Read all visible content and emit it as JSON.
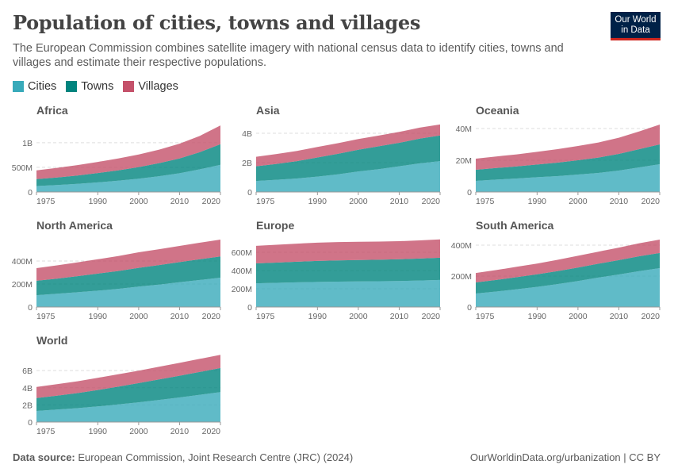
{
  "header": {
    "title": "Population of cities, towns and villages",
    "subtitle": "The European Commission combines satellite imagery with national census data to identify cities, towns and villages and estimate their respective populations.",
    "logo": "Our World in Data"
  },
  "colors": {
    "Cities": "#38aaba",
    "Towns": "#00847e",
    "Villages": "#c4516a"
  },
  "legend": [
    "Cities",
    "Towns",
    "Villages"
  ],
  "footer": {
    "source_label": "Data source:",
    "source": "European Commission, Joint Research Centre (JRC) (2024)",
    "credit": "OurWorldinData.org/urbanization | CC BY"
  },
  "chart_data": [
    {
      "type": "area",
      "stacked": true,
      "title": "Africa",
      "x": [
        1975,
        1980,
        1985,
        1990,
        1995,
        2000,
        2005,
        2010,
        2015,
        2020
      ],
      "xticks": [
        "1975",
        "1990",
        "2000",
        "2010",
        "2020"
      ],
      "ylim": [
        0,
        1400000000
      ],
      "yticks": [
        {
          "v": 0,
          "l": "0"
        },
        {
          "v": 500000000,
          "l": "500M"
        },
        {
          "v": 1000000000,
          "l": "1B"
        }
      ],
      "series": [
        {
          "name": "Cities",
          "values": [
            120,
            140,
            165,
            195,
            230,
            270,
            320,
            380,
            460,
            550
          ]
        },
        {
          "name": "Towns",
          "values": [
            140,
            155,
            170,
            190,
            210,
            235,
            265,
            300,
            350,
            420
          ]
        },
        {
          "name": "Villages",
          "values": [
            180,
            195,
            210,
            225,
            240,
            255,
            275,
            300,
            330,
            380
          ]
        }
      ],
      "unit": "million"
    },
    {
      "type": "area",
      "stacked": true,
      "title": "Asia",
      "x": [
        1975,
        1980,
        1985,
        1990,
        1995,
        2000,
        2005,
        2010,
        2015,
        2020
      ],
      "xticks": [
        "1975",
        "1990",
        "2000",
        "2010",
        "2020"
      ],
      "ylim": [
        0,
        4700000000
      ],
      "yticks": [
        {
          "v": 0,
          "l": "0"
        },
        {
          "v": 2000000000,
          "l": "2B"
        },
        {
          "v": 4000000000,
          "l": "4B"
        }
      ],
      "series": [
        {
          "name": "Cities",
          "values": [
            750,
            830,
            920,
            1050,
            1200,
            1400,
            1550,
            1750,
            1950,
            2100
          ]
        },
        {
          "name": "Towns",
          "values": [
            1000,
            1080,
            1180,
            1300,
            1400,
            1480,
            1560,
            1600,
            1680,
            1750
          ]
        },
        {
          "name": "Villages",
          "values": [
            650,
            680,
            700,
            720,
            720,
            730,
            730,
            740,
            750,
            750
          ]
        }
      ],
      "unit": "million"
    },
    {
      "type": "area",
      "stacked": true,
      "title": "Oceania",
      "x": [
        1975,
        1980,
        1985,
        1990,
        1995,
        2000,
        2005,
        2010,
        2015,
        2020
      ],
      "xticks": [
        "1975",
        "1990",
        "2000",
        "2010",
        "2020"
      ],
      "ylim": [
        0,
        43500000
      ],
      "yticks": [
        {
          "v": 0,
          "l": "0"
        },
        {
          "v": 20000000,
          "l": "20M"
        },
        {
          "v": 40000000,
          "l": "40M"
        }
      ],
      "series": [
        {
          "name": "Cities",
          "values": [
            7,
            7.8,
            8.5,
            9.3,
            10,
            11,
            12,
            13.5,
            15.5,
            17.5
          ]
        },
        {
          "name": "Towns",
          "values": [
            7,
            7.3,
            7.6,
            8,
            8.5,
            9,
            9.7,
            10.5,
            11.5,
            12.5
          ]
        },
        {
          "name": "Villages",
          "values": [
            7,
            7.3,
            7.6,
            8,
            8.5,
            9,
            9.5,
            10.2,
            11.2,
            12.5
          ]
        }
      ],
      "unit": "million"
    },
    {
      "type": "area",
      "stacked": true,
      "title": "North America",
      "x": [
        1975,
        1980,
        1985,
        1990,
        1995,
        2000,
        2005,
        2010,
        2015,
        2020
      ],
      "xticks": [
        "1975",
        "1990",
        "2000",
        "2010",
        "2020"
      ],
      "ylim": [
        0,
        600000000
      ],
      "yticks": [
        {
          "v": 0,
          "l": "0"
        },
        {
          "v": 200000000,
          "l": "200M"
        },
        {
          "v": 400000000,
          "l": "400M"
        }
      ],
      "series": [
        {
          "name": "Cities",
          "values": [
            103,
            115,
            128,
            142,
            158,
            178,
            195,
            215,
            235,
            255
          ]
        },
        {
          "name": "Towns",
          "values": [
            125,
            132,
            140,
            148,
            155,
            163,
            170,
            175,
            180,
            185
          ]
        },
        {
          "name": "Villages",
          "values": [
            110,
            115,
            120,
            125,
            130,
            135,
            138,
            141,
            144,
            146
          ]
        }
      ],
      "unit": "million"
    },
    {
      "type": "area",
      "stacked": true,
      "title": "Europe",
      "x": [
        1975,
        1980,
        1985,
        1990,
        1995,
        2000,
        2005,
        2010,
        2015,
        2020
      ],
      "xticks": [
        "1975",
        "1990",
        "2000",
        "2010",
        "2020"
      ],
      "ylim": [
        0,
        756000000
      ],
      "yticks": [
        {
          "v": 0,
          "l": "0"
        },
        {
          "v": 200000000,
          "l": "200M"
        },
        {
          "v": 400000000,
          "l": "400M"
        },
        {
          "v": 600000000,
          "l": "600M"
        }
      ],
      "series": [
        {
          "name": "Cities",
          "values": [
            260,
            265,
            270,
            275,
            278,
            280,
            282,
            285,
            290,
            296
          ]
        },
        {
          "name": "Towns",
          "values": [
            218,
            222,
            226,
            230,
            232,
            234,
            236,
            238,
            241,
            244
          ]
        },
        {
          "name": "Villages",
          "values": [
            192,
            195,
            198,
            200,
            202,
            200,
            199,
            198,
            199,
            200
          ]
        }
      ],
      "unit": "million"
    },
    {
      "type": "area",
      "stacked": true,
      "title": "South America",
      "x": [
        1975,
        1980,
        1985,
        1990,
        1995,
        2000,
        2005,
        2010,
        2015,
        2020
      ],
      "xticks": [
        "1975",
        "1990",
        "2000",
        "2010",
        "2020"
      ],
      "ylim": [
        0,
        446000000
      ],
      "yticks": [
        {
          "v": 0,
          "l": "0"
        },
        {
          "v": 200000000,
          "l": "200M"
        },
        {
          "v": 400000000,
          "l": "400M"
        }
      ],
      "series": [
        {
          "name": "Cities",
          "values": [
            87,
            100,
            115,
            130,
            148,
            168,
            190,
            210,
            232,
            251
          ]
        },
        {
          "name": "Towns",
          "values": [
            72,
            75,
            78,
            81,
            84,
            87,
            90,
            93,
            96,
            98
          ]
        },
        {
          "name": "Villages",
          "values": [
            61,
            64,
            67,
            70,
            73,
            76,
            78,
            81,
            84,
            87
          ]
        }
      ],
      "unit": "million"
    },
    {
      "type": "area",
      "stacked": true,
      "title": "World",
      "x": [
        1975,
        1980,
        1985,
        1990,
        1995,
        2000,
        2005,
        2010,
        2015,
        2020
      ],
      "xticks": [
        "1975",
        "1990",
        "2000",
        "2010",
        "2020"
      ],
      "ylim": [
        0,
        8050000000
      ],
      "yticks": [
        {
          "v": 0,
          "l": "0"
        },
        {
          "v": 2000000000,
          "l": "2B"
        },
        {
          "v": 4000000000,
          "l": "4B"
        },
        {
          "v": 6000000000,
          "l": "6B"
        }
      ],
      "series": [
        {
          "name": "Cities",
          "values": [
            1300,
            1450,
            1620,
            1820,
            2050,
            2300,
            2580,
            2870,
            3180,
            3500
          ]
        },
        {
          "name": "Towns",
          "values": [
            1500,
            1620,
            1760,
            1920,
            2080,
            2240,
            2400,
            2530,
            2670,
            2800
          ]
        },
        {
          "name": "Villages",
          "values": [
            1300,
            1340,
            1380,
            1420,
            1440,
            1460,
            1480,
            1500,
            1520,
            1550
          ]
        }
      ],
      "unit": "million"
    }
  ]
}
